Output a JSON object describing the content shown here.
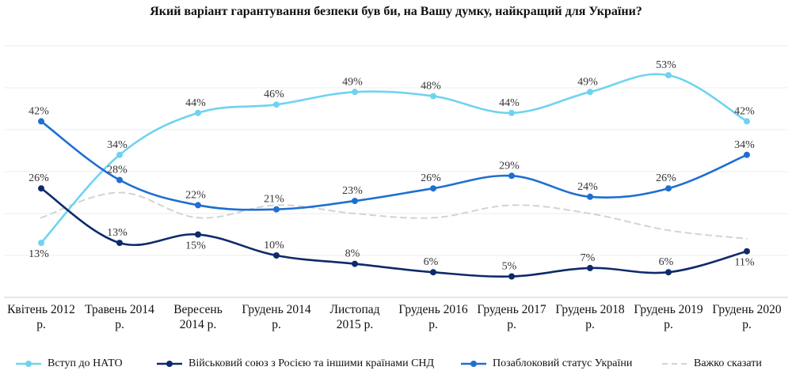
{
  "chart_data": {
    "type": "line",
    "title": "Який варіант гарантування безпеки був би, на Вашу думку, найкращий для України?",
    "categories": [
      [
        "Квітень 2012",
        "р."
      ],
      [
        "Травень 2014",
        "р."
      ],
      [
        "Вересень",
        "2014 р."
      ],
      [
        "Грудень 2014",
        "р."
      ],
      [
        "Листопад",
        "2015 р."
      ],
      [
        "Грудень 2016",
        "р."
      ],
      [
        "Грудень 2017",
        "р."
      ],
      [
        "Грудень 2018",
        "р."
      ],
      [
        "Грудень 2019",
        "р."
      ],
      [
        "Грудень 2020",
        "р."
      ]
    ],
    "ylim": [
      0,
      60
    ],
    "grid": true,
    "legend_position": "bottom",
    "series": [
      {
        "name": "Вступ до НАТО",
        "color": "#6fd3f0",
        "values": [
          13,
          34,
          44,
          46,
          49,
          48,
          44,
          49,
          53,
          42
        ],
        "labels": [
          "13%",
          "34%",
          "44%",
          "46%",
          "49%",
          "48%",
          "44%",
          "49%",
          "53%",
          "42%"
        ],
        "label_pos": [
          "below",
          "above",
          "above",
          "above",
          "above",
          "above",
          "above",
          "above",
          "above",
          "above"
        ],
        "markers": true,
        "dashed": false
      },
      {
        "name": "Військовий союз з Росією та іншими країнами СНД",
        "color": "#0d2a6b",
        "values": [
          26,
          13,
          15,
          10,
          8,
          6,
          5,
          7,
          6,
          11
        ],
        "labels": [
          "26%",
          "13%",
          "15%",
          "10%",
          "8%",
          "6%",
          "5%",
          "7%",
          "6%",
          "11%"
        ],
        "label_pos": [
          "above",
          "above",
          "below",
          "above",
          "above",
          "above",
          "above",
          "above",
          "above",
          "below"
        ],
        "markers": true,
        "dashed": false
      },
      {
        "name": "Позаблоковий статус України",
        "color": "#1f6fd1",
        "values": [
          42,
          28,
          22,
          21,
          23,
          26,
          29,
          24,
          26,
          34
        ],
        "labels": [
          "42%",
          "28%",
          "22%",
          "21%",
          "23%",
          "26%",
          "29%",
          "24%",
          "26%",
          "34%"
        ],
        "label_pos": [
          "above",
          "above",
          "above",
          "above",
          "above",
          "above",
          "above",
          "above",
          "above",
          "above"
        ],
        "markers": true,
        "dashed": false
      },
      {
        "name": "Важко сказати",
        "color": "#d3d3d3",
        "values": [
          19,
          25,
          19,
          22,
          20,
          19,
          22,
          20,
          16,
          14
        ],
        "labels": [],
        "label_pos": [],
        "markers": false,
        "dashed": true
      }
    ]
  }
}
